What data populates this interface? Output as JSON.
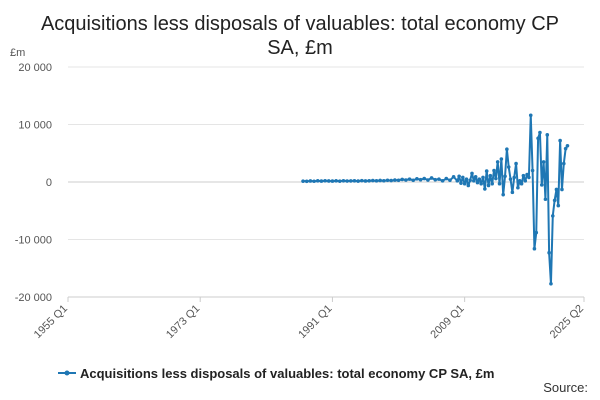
{
  "chart_data": {
    "type": "line",
    "title_line1": "Acquisitions less disposals of valuables: total economy CP",
    "title_line2": "SA, £m",
    "unit_label": "£m",
    "source_label": "Source:",
    "xlim": [
      "1955 Q1",
      "2025 Q2"
    ],
    "ylim": [
      -20000,
      20000
    ],
    "x_ticks": [
      "1955 Q1",
      "1973 Q1",
      "1991 Q1",
      "2009 Q1",
      "2025 Q2"
    ],
    "y_ticks": [
      20000,
      10000,
      0,
      -10000,
      -20000
    ],
    "y_tick_labels": [
      "20 000",
      "10 000",
      "0",
      "-10 000",
      "-20 000"
    ],
    "grid": true,
    "legend_position": "bottom",
    "colors": {
      "series": "#1f77b4",
      "grid": "#e5e5e5",
      "axis": "#cccccc"
    },
    "series": [
      {
        "name": "Acquisitions less disposals of valuables: total economy CP SA, £m",
        "points": [
          [
            "1987 Q1",
            150
          ],
          [
            "1987 Q3",
            120
          ],
          [
            "1988 Q1",
            180
          ],
          [
            "1988 Q3",
            130
          ],
          [
            "1989 Q1",
            200
          ],
          [
            "1989 Q3",
            160
          ],
          [
            "1990 Q1",
            220
          ],
          [
            "1990 Q3",
            180
          ],
          [
            "1991 Q1",
            160
          ],
          [
            "1991 Q3",
            200
          ],
          [
            "1992 Q1",
            150
          ],
          [
            "1992 Q3",
            210
          ],
          [
            "1993 Q1",
            170
          ],
          [
            "1993 Q3",
            190
          ],
          [
            "1994 Q1",
            200
          ],
          [
            "1994 Q3",
            160
          ],
          [
            "1995 Q1",
            230
          ],
          [
            "1995 Q3",
            180
          ],
          [
            "1996 Q1",
            210
          ],
          [
            "1996 Q3",
            250
          ],
          [
            "1997 Q1",
            200
          ],
          [
            "1997 Q3",
            270
          ],
          [
            "1998 Q1",
            220
          ],
          [
            "1998 Q3",
            300
          ],
          [
            "1999 Q1",
            250
          ],
          [
            "1999 Q3",
            330
          ],
          [
            "2000 Q1",
            300
          ],
          [
            "2000 Q3",
            450
          ],
          [
            "2001 Q1",
            350
          ],
          [
            "2001 Q3",
            500
          ],
          [
            "2002 Q1",
            300
          ],
          [
            "2002 Q3",
            550
          ],
          [
            "2003 Q1",
            400
          ],
          [
            "2003 Q3",
            600
          ],
          [
            "2004 Q1",
            350
          ],
          [
            "2004 Q3",
            700
          ],
          [
            "2005 Q1",
            400
          ],
          [
            "2005 Q3",
            500
          ],
          [
            "2006 Q1",
            200
          ],
          [
            "2006 Q3",
            600
          ],
          [
            "2007 Q1",
            300
          ],
          [
            "2007 Q3",
            900
          ],
          [
            "2008 Q1",
            200
          ],
          [
            "2008 Q2",
            1000
          ],
          [
            "2008 Q3",
            -200
          ],
          [
            "2008 Q4",
            800
          ],
          [
            "2009 Q1",
            -300
          ],
          [
            "2009 Q2",
            500
          ],
          [
            "2009 Q3",
            -600
          ],
          [
            "2009 Q4",
            300
          ],
          [
            "2010 Q1",
            1500
          ],
          [
            "2010 Q2",
            200
          ],
          [
            "2010 Q3",
            900
          ],
          [
            "2010 Q4",
            -100
          ],
          [
            "2011 Q1",
            500
          ],
          [
            "2011 Q2",
            -300
          ],
          [
            "2011 Q3",
            800
          ],
          [
            "2011 Q4",
            -1200
          ],
          [
            "2012 Q1",
            1900
          ],
          [
            "2012 Q2",
            -600
          ],
          [
            "2012 Q3",
            1100
          ],
          [
            "2012 Q4",
            -300
          ],
          [
            "2013 Q1",
            2000
          ],
          [
            "2013 Q2",
            600
          ],
          [
            "2013 Q3",
            3500
          ],
          [
            "2013 Q4",
            -300
          ],
          [
            "2014 Q1",
            4000
          ],
          [
            "2014 Q2",
            -2200
          ],
          [
            "2014 Q3",
            1000
          ],
          [
            "2014 Q4",
            5700
          ],
          [
            "2015 Q1",
            2600
          ],
          [
            "2015 Q2",
            500
          ],
          [
            "2015 Q3",
            -1800
          ],
          [
            "2015 Q4",
            800
          ],
          [
            "2016 Q1",
            3200
          ],
          [
            "2016 Q2",
            -1000
          ],
          [
            "2016 Q3",
            200
          ],
          [
            "2016 Q4",
            -300
          ],
          [
            "2017 Q1",
            1100
          ],
          [
            "2017 Q2",
            200
          ],
          [
            "2017 Q3",
            1300
          ],
          [
            "2017 Q4",
            800
          ],
          [
            "2018 Q1",
            11600
          ],
          [
            "2018 Q2",
            2000
          ],
          [
            "2018 Q3",
            -11600
          ],
          [
            "2018 Q4",
            -8800
          ],
          [
            "2019 Q1",
            7600
          ],
          [
            "2019 Q2",
            8600
          ],
          [
            "2019 Q3",
            -500
          ],
          [
            "2019 Q4",
            3500
          ],
          [
            "2020 Q1",
            -3000
          ],
          [
            "2020 Q2",
            8200
          ],
          [
            "2020 Q3",
            -12300
          ],
          [
            "2020 Q4",
            -17700
          ],
          [
            "2021 Q1",
            -5900
          ],
          [
            "2021 Q2",
            -3200
          ],
          [
            "2021 Q3",
            -1300
          ],
          [
            "2021 Q4",
            -4100
          ],
          [
            "2022 Q1",
            7200
          ],
          [
            "2022 Q2",
            -1300
          ],
          [
            "2022 Q3",
            3200
          ],
          [
            "2022 Q4",
            5800
          ],
          [
            "2023 Q1",
            6300
          ]
        ]
      }
    ]
  }
}
